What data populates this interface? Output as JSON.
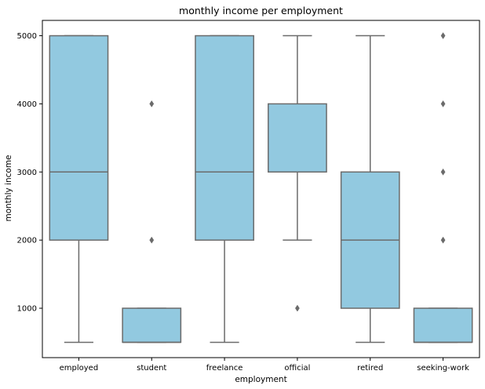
{
  "chart_data": {
    "type": "box",
    "title": "monthly income per employment",
    "xlabel": "employment",
    "ylabel": "monthly income",
    "categories": [
      "employed",
      "student",
      "freelance",
      "official",
      "retired",
      "seeking-work"
    ],
    "boxes": [
      {
        "category": "employed",
        "whisker_low": 500,
        "q1": 2000,
        "median": 3000,
        "q3": 5000,
        "whisker_high": 5000,
        "outliers": []
      },
      {
        "category": "student",
        "whisker_low": 500,
        "q1": 500,
        "median": 500,
        "q3": 1000,
        "whisker_high": 1000,
        "outliers": [
          2000,
          4000
        ]
      },
      {
        "category": "freelance",
        "whisker_low": 500,
        "q1": 2000,
        "median": 3000,
        "q3": 5000,
        "whisker_high": 5000,
        "outliers": []
      },
      {
        "category": "official",
        "whisker_low": 2000,
        "q1": 3000,
        "median": 3000,
        "q3": 4000,
        "whisker_high": 5000,
        "outliers": [
          1000
        ]
      },
      {
        "category": "retired",
        "whisker_low": 500,
        "q1": 1000,
        "median": 2000,
        "q3": 3000,
        "whisker_high": 5000,
        "outliers": []
      },
      {
        "category": "seeking-work",
        "whisker_low": 500,
        "q1": 500,
        "median": 500,
        "q3": 1000,
        "whisker_high": 1000,
        "outliers": [
          2000,
          3000,
          4000,
          5000
        ]
      }
    ],
    "y_ticks": [
      1000,
      2000,
      3000,
      4000,
      5000
    ],
    "ylim": [
      275,
      5225
    ],
    "grid": false,
    "colors": {
      "box_fill": "#92c9e0",
      "line": "#6b6b6b",
      "axis": "#000000"
    }
  }
}
